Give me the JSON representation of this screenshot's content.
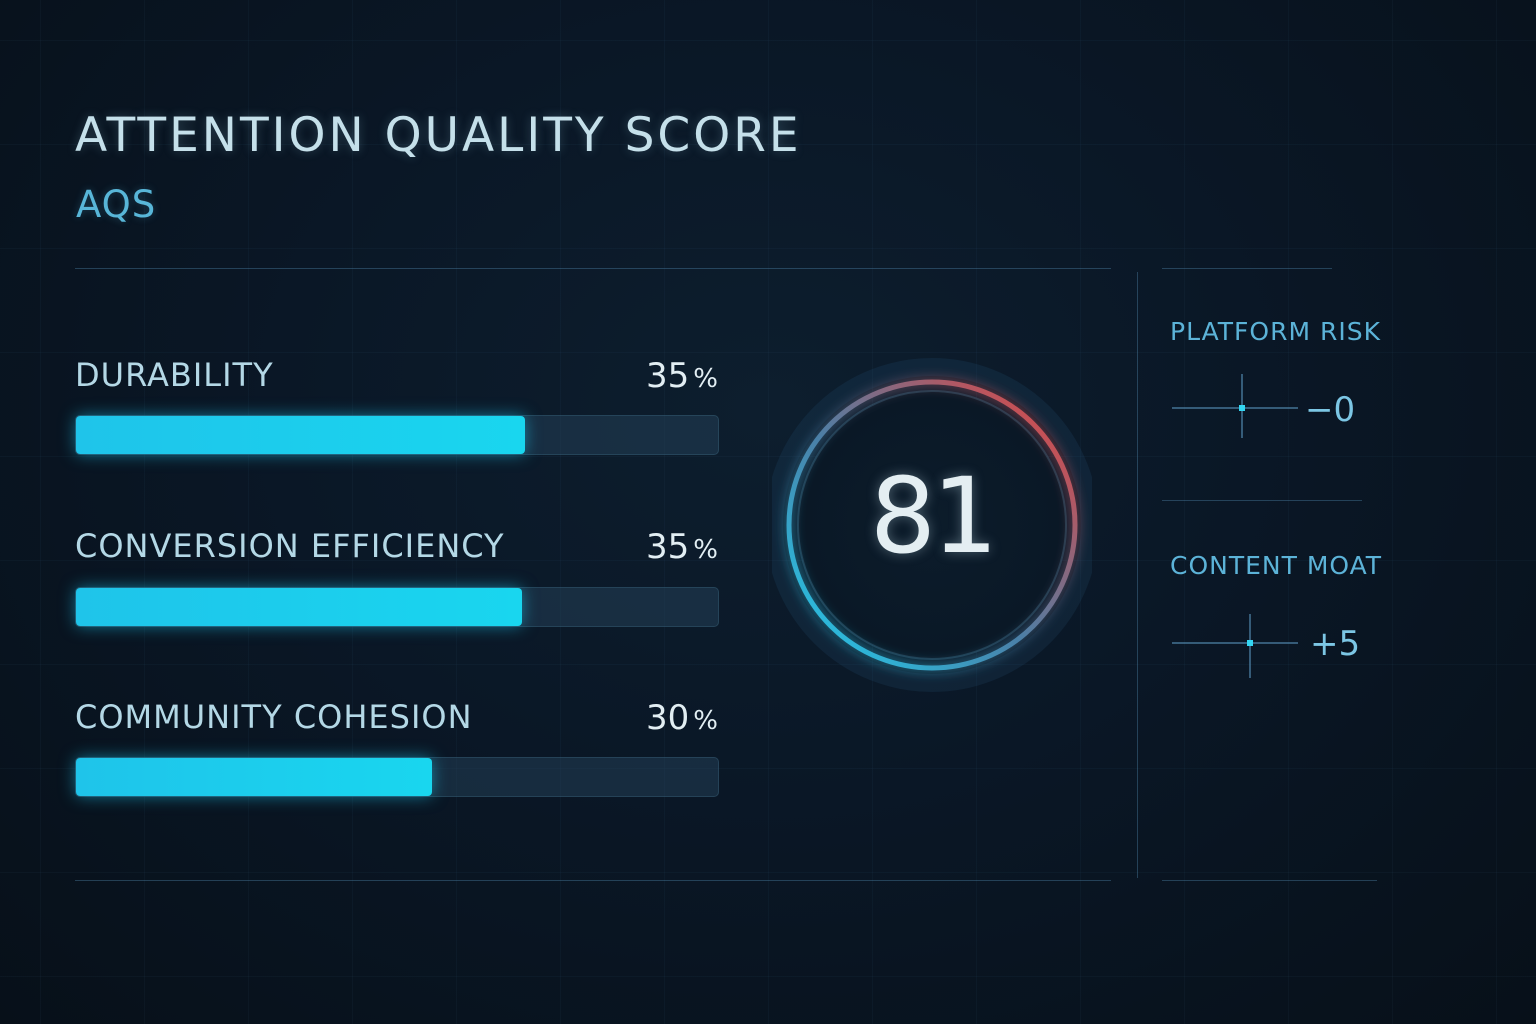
{
  "header": {
    "title": "ATTENTION QUALITY SCORE",
    "subtitle": "AQS"
  },
  "metrics": [
    {
      "label": "DURABILITY",
      "value": "35",
      "unit": "%",
      "bar_fill": 0.7
    },
    {
      "label": "CONVERSION EFFICIENCY",
      "value": "35",
      "unit": "%",
      "bar_fill": 0.695
    },
    {
      "label": "COMMUNITY COHESION",
      "value": "30",
      "unit": "%",
      "bar_fill": 0.555
    }
  ],
  "score": {
    "value": "81",
    "ring_start_color": "#1fd0f0",
    "ring_end_color": "#f0403a"
  },
  "modifiers": [
    {
      "label": "PLATFORM RISK",
      "value": "−0"
    },
    {
      "label": "CONTENT MOAT",
      "value": "+5"
    }
  ],
  "colors": {
    "accent": "#19d6ef",
    "title": "#c5e0ea",
    "subtitle": "#58b6d8",
    "background": "#0a1726"
  }
}
